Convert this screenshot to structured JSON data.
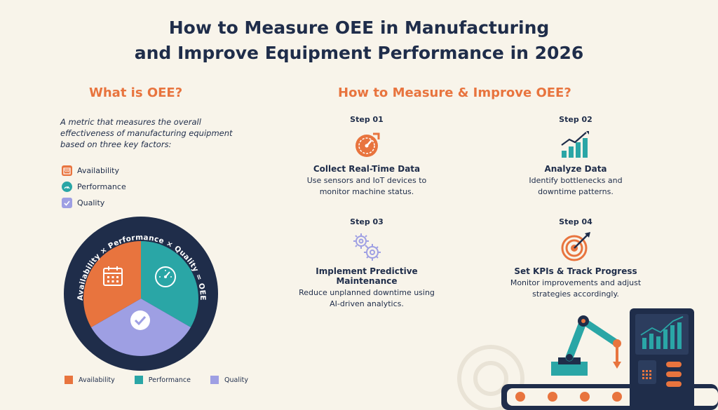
{
  "page": {
    "title_line1": "How to Measure OEE in Manufacturing",
    "title_line2": "and Improve Equipment Performance in 2026"
  },
  "left": {
    "heading": "What is OEE?",
    "description": "A metric that measures the overall effectiveness of manufacturing equipment based on three key factors:",
    "factors": [
      {
        "label": "Availability",
        "icon": "calendar-icon",
        "color": "#e8743e"
      },
      {
        "label": "Performance",
        "icon": "gauge-icon",
        "color": "#2aa6a6"
      },
      {
        "label": "Quality",
        "icon": "check-icon",
        "color": "#9e9fe3"
      }
    ],
    "formula": "Availability × Performance × Quality = OEE",
    "legend": [
      "Availability",
      "Performance",
      "Quality"
    ]
  },
  "right": {
    "heading": "How to Measure & Improve OEE?",
    "steps": [
      {
        "label": "Step 01",
        "title": "Collect Real-Time Data",
        "text_line1": "Use sensors and IoT devices to",
        "text_line2": "monitor machine status.",
        "icon": "speedometer-icon"
      },
      {
        "label": "Step 02",
        "title": "Analyze Data",
        "text_line1": "Identify bottlenecks and",
        "text_line2": "downtime patterns.",
        "icon": "bar-chart-icon"
      },
      {
        "label": "Step 03",
        "title": "Implement Predictive Maintenance",
        "text_line1": "Reduce unplanned downtime using",
        "text_line2": "AI-driven analytics.",
        "icon": "gears-icon"
      },
      {
        "label": "Step 04",
        "title": "Set KPIs & Track Progress",
        "text_line1": "Monitor improvements and adjust",
        "text_line2": "strategies accordingly.",
        "icon": "target-icon"
      }
    ]
  },
  "colors": {
    "orange": "#e8743e",
    "teal": "#2aa6a6",
    "lavender": "#9e9fe3",
    "navy": "#1f2d4a",
    "background": "#f8f4ea"
  }
}
